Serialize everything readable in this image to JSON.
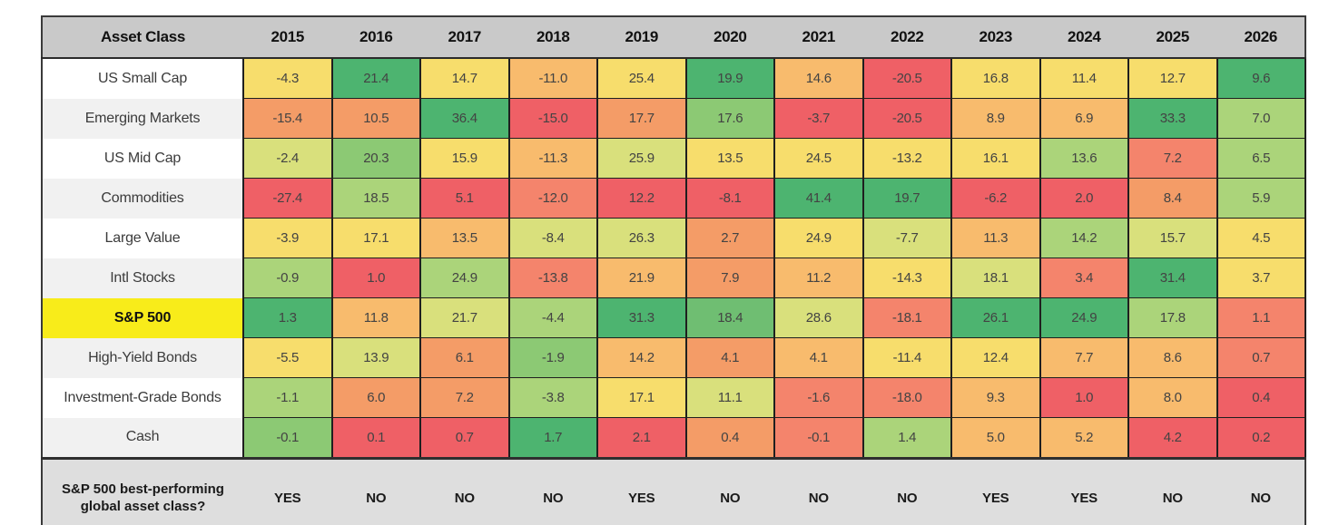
{
  "header": {
    "asset_class": "Asset Class"
  },
  "footer": {
    "label": "S&P 500 best-performing global asset class?",
    "values": [
      "YES",
      "NO",
      "NO",
      "NO",
      "YES",
      "NO",
      "NO",
      "NO",
      "YES",
      "YES",
      "NO",
      "NO"
    ]
  },
  "palette": {
    "g1": "#4db470",
    "g2": "#6fbe72",
    "g3": "#8cc974",
    "lg": "#abd47a",
    "yg": "#d9e07c",
    "y": "#f7dd6c",
    "lo": "#f8bb6d",
    "o": "#f49c67",
    "so": "#f4846c",
    "r": "#ef6066"
  },
  "style_colors": {
    "header_bg": "#c9c9c9",
    "footer_bg": "#dedede",
    "label_alt_bg": "#f1f1f1",
    "highlight_bg": "#f8ec1a",
    "border": "#2b2b2b"
  },
  "chart_data": {
    "type": "heatmap",
    "title": "Asset class total returns by year with S&P 500 comparison",
    "columns": [
      "2015",
      "2016",
      "2017",
      "2018",
      "2019",
      "2020",
      "2021",
      "2022",
      "2023",
      "2024",
      "2025",
      "2026"
    ],
    "rows": [
      {
        "name": "US Small Cap",
        "highlight": false,
        "values": [
          -4.3,
          21.4,
          14.7,
          -11.0,
          25.4,
          19.9,
          14.6,
          -20.5,
          16.8,
          11.4,
          12.7,
          9.6
        ],
        "colors": [
          "y",
          "g1",
          "y",
          "lo",
          "y",
          "g1",
          "lo",
          "r",
          "y",
          "y",
          "y",
          "g1"
        ]
      },
      {
        "name": "Emerging Markets",
        "highlight": false,
        "values": [
          -15.4,
          10.5,
          36.4,
          -15.0,
          17.7,
          17.6,
          -3.7,
          -20.5,
          8.9,
          6.9,
          33.3,
          7.0
        ],
        "colors": [
          "o",
          "o",
          "g1",
          "r",
          "o",
          "g3",
          "r",
          "r",
          "lo",
          "lo",
          "g1",
          "lg"
        ]
      },
      {
        "name": "US Mid Cap",
        "highlight": false,
        "values": [
          -2.4,
          20.3,
          15.9,
          -11.3,
          25.9,
          13.5,
          24.5,
          -13.2,
          16.1,
          13.6,
          7.2,
          6.5
        ],
        "colors": [
          "yg",
          "g3",
          "y",
          "lo",
          "yg",
          "y",
          "y",
          "y",
          "y",
          "lg",
          "so",
          "lg"
        ]
      },
      {
        "name": "Commodities",
        "highlight": false,
        "values": [
          -27.4,
          18.5,
          5.1,
          -12.0,
          12.2,
          -8.1,
          41.4,
          19.7,
          -6.2,
          2.0,
          8.4,
          5.9
        ],
        "colors": [
          "r",
          "lg",
          "r",
          "so",
          "r",
          "r",
          "g1",
          "g1",
          "r",
          "r",
          "o",
          "lg"
        ]
      },
      {
        "name": "Large Value",
        "highlight": false,
        "values": [
          -3.9,
          17.1,
          13.5,
          -8.4,
          26.3,
          2.7,
          24.9,
          -7.7,
          11.3,
          14.2,
          15.7,
          4.5
        ],
        "colors": [
          "y",
          "y",
          "lo",
          "yg",
          "yg",
          "o",
          "y",
          "yg",
          "lo",
          "lg",
          "yg",
          "y"
        ]
      },
      {
        "name": "Intl Stocks",
        "highlight": false,
        "values": [
          -0.9,
          1.0,
          24.9,
          -13.8,
          21.9,
          7.9,
          11.2,
          -14.3,
          18.1,
          3.4,
          31.4,
          3.7
        ],
        "colors": [
          "lg",
          "r",
          "lg",
          "so",
          "lo",
          "o",
          "lo",
          "y",
          "yg",
          "so",
          "g1",
          "y"
        ]
      },
      {
        "name": "S&P 500",
        "highlight": true,
        "values": [
          1.3,
          11.8,
          21.7,
          -4.4,
          31.3,
          18.4,
          28.6,
          -18.1,
          26.1,
          24.9,
          17.8,
          1.1
        ],
        "colors": [
          "g1",
          "lo",
          "yg",
          "lg",
          "g1",
          "g2",
          "yg",
          "so",
          "g1",
          "g1",
          "lg",
          "so"
        ]
      },
      {
        "name": "High-Yield Bonds",
        "highlight": false,
        "values": [
          -5.5,
          13.9,
          6.1,
          -1.9,
          14.2,
          4.1,
          4.1,
          -11.4,
          12.4,
          7.7,
          8.6,
          0.7
        ],
        "colors": [
          "y",
          "yg",
          "o",
          "g3",
          "lo",
          "o",
          "lo",
          "y",
          "y",
          "lo",
          "lo",
          "so"
        ]
      },
      {
        "name": "Investment-Grade Bonds",
        "highlight": false,
        "values": [
          -1.1,
          6.0,
          7.2,
          -3.8,
          17.1,
          11.1,
          -1.6,
          -18.0,
          9.3,
          1.0,
          8.0,
          0.4
        ],
        "colors": [
          "lg",
          "o",
          "o",
          "lg",
          "y",
          "yg",
          "so",
          "so",
          "lo",
          "r",
          "lo",
          "r"
        ]
      },
      {
        "name": "Cash",
        "highlight": false,
        "values": [
          -0.1,
          0.1,
          0.7,
          1.7,
          2.1,
          0.4,
          -0.1,
          1.4,
          5.0,
          5.2,
          4.2,
          0.2
        ],
        "colors": [
          "g3",
          "r",
          "r",
          "g1",
          "r",
          "o",
          "so",
          "lg",
          "lo",
          "lo",
          "r",
          "r"
        ]
      }
    ]
  }
}
